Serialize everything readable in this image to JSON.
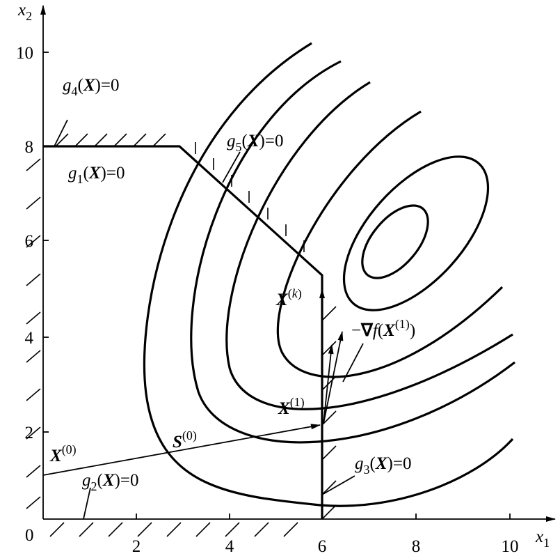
{
  "axes": {
    "x_label": [
      "x",
      "1"
    ],
    "y_label": [
      "x",
      "2"
    ],
    "origin": "0",
    "x_ticks": [
      "2",
      "4",
      "6",
      "8",
      "10"
    ],
    "y_ticks": [
      "2",
      "4",
      "6",
      "8",
      "10"
    ]
  },
  "labels": {
    "g4": [
      "g",
      "4",
      "(",
      "X",
      ")=0"
    ],
    "g1": [
      "g",
      "1",
      "(",
      "X",
      ")=0"
    ],
    "g5": [
      "g",
      "5",
      "(",
      "X",
      ")=0"
    ],
    "xk": [
      "X",
      "(",
      "k",
      ")"
    ],
    "grad": [
      "−",
      "∇",
      "f",
      "(",
      "X",
      "(1)",
      ")"
    ],
    "x1": [
      "X",
      "(1)"
    ],
    "s0": [
      "S",
      "(0)"
    ],
    "x0": [
      "X",
      "(0)"
    ],
    "g2": [
      "g",
      "2",
      "(",
      "X",
      ")=0"
    ],
    "g3": [
      "g",
      "3",
      "(",
      "X",
      ")=0"
    ]
  }
}
